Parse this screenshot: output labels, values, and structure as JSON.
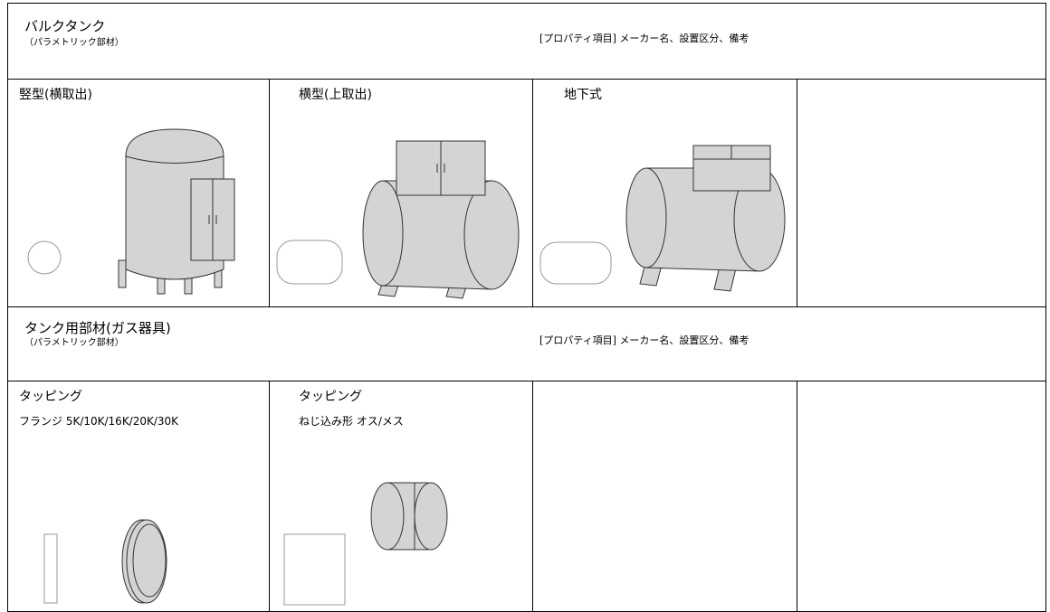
{
  "sections": [
    {
      "title": "バルクタンク",
      "subtitle": "（パラメトリック部材）",
      "properties": "[プロパティ項目] メーカー名、設置区分、備考",
      "items": [
        {
          "label": "竪型(横取出)"
        },
        {
          "label": "横型(上取出)"
        },
        {
          "label": "地下式"
        }
      ]
    },
    {
      "title": "タンク用部材(ガス器具)",
      "subtitle": "（パラメトリック部材）",
      "properties": "[プロパティ項目] メーカー名、設置区分、備考",
      "items": [
        {
          "label": "タッピング",
          "sublabel": "フランジ 5K/10K/16K/20K/30K"
        },
        {
          "label": "タッピング",
          "sublabel": "ねじ込み形 オス/メス"
        }
      ]
    }
  ]
}
